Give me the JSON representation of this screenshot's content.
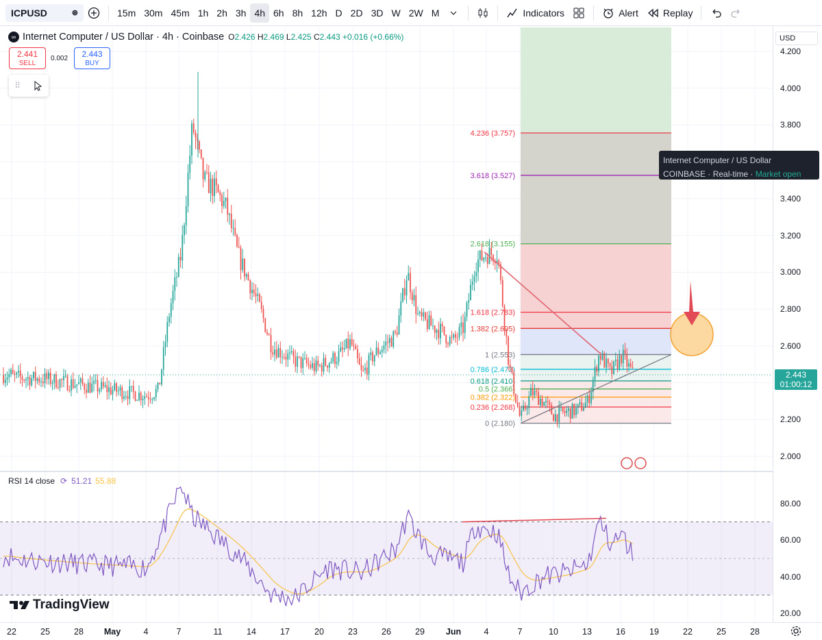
{
  "toolbar": {
    "symbol": "ICPUSD",
    "intervals": [
      "15m",
      "30m",
      "45m",
      "1h",
      "2h",
      "3h",
      "4h",
      "6h",
      "8h",
      "12h",
      "D",
      "2D",
      "3D",
      "W",
      "2W",
      "M"
    ],
    "active_interval": "4h",
    "indicators_label": "Indicators",
    "alert_label": "Alert",
    "replay_label": "Replay"
  },
  "legend": {
    "title": "Internet Computer / US Dollar · 4h · Coinbase",
    "o_key": "O",
    "o": "2.426",
    "h_key": "H",
    "h": "2.469",
    "l_key": "L",
    "l": "2.425",
    "c_key": "C",
    "c": "2.443",
    "change": "+0.016 (+0.66%)"
  },
  "trade": {
    "sell_price": "2.441",
    "sell_label": "SELL",
    "spread": "0.002",
    "buy_price": "2.443",
    "buy_label": "BUY"
  },
  "price_scale": {
    "currency": "USD",
    "labels": [
      "4.200",
      "4.000",
      "3.800",
      "3.600",
      "3.400",
      "3.200",
      "3.000",
      "2.800",
      "2.600",
      "2.400",
      "2.200",
      "2.000"
    ],
    "current_price": "2.443",
    "countdown": "01:00:12"
  },
  "tooltip": {
    "line1": "Internet Computer / US Dollar",
    "exchange": "COINBASE",
    "realtime": "Real-time",
    "market": "Market open"
  },
  "fib_levels": [
    {
      "label": "4.236 (3.757)",
      "value": 3.757,
      "color": "#f23645"
    },
    {
      "label": "3.618 (3.527)",
      "value": 3.527,
      "color": "#9c27b0"
    },
    {
      "label": "2.618 (3.155)",
      "value": 3.155,
      "color": "#4caf50"
    },
    {
      "label": "1.618 (2.783)",
      "value": 2.783,
      "color": "#f23645"
    },
    {
      "label": "1.382 (2.695)",
      "value": 2.695,
      "color": "#e53935"
    },
    {
      "label": "1 (2.553)",
      "value": 2.553,
      "color": "#787b86"
    },
    {
      "label": "0.786 (2.473)",
      "value": 2.473,
      "color": "#00bcd4"
    },
    {
      "label": "0.618 (2.410)",
      "value": 2.41,
      "color": "#089981"
    },
    {
      "label": "0.5 (2.366)",
      "value": 2.366,
      "color": "#4caf50"
    },
    {
      "label": "0.382 (2.322)",
      "value": 2.322,
      "color": "#ff9800"
    },
    {
      "label": "0.236 (2.268)",
      "value": 2.268,
      "color": "#f23645"
    },
    {
      "label": "0 (2.180)",
      "value": 2.18,
      "color": "#787b86"
    }
  ],
  "rsi": {
    "label": "RSI 14 close",
    "value": "51.21",
    "ma_value": "55.88",
    "labels": [
      "80.00",
      "60.00",
      "40.00",
      "20.00"
    ]
  },
  "time_labels": [
    "22",
    "25",
    "28",
    "May",
    "4",
    "7",
    "11",
    "14",
    "17",
    "20",
    "23",
    "26",
    "29",
    "Jun",
    "4",
    "7",
    "10",
    "13",
    "16",
    "19",
    "22",
    "25",
    "28"
  ],
  "brand": "TradingView",
  "colors": {
    "up": "#26a69a",
    "down": "#ef5350",
    "rsi": "#7e57c2",
    "rsi_ma": "#f7c244"
  },
  "chart_data": {
    "type": "candlestick",
    "price_range": [
      2.0,
      4.2
    ],
    "path_points": [
      {
        "x": "Apr 22",
        "price": 2.43
      },
      {
        "x": "Apr 25",
        "price": 2.42
      },
      {
        "x": "Apr 28",
        "price": 2.39
      },
      {
        "x": "May 2",
        "price": 2.35
      },
      {
        "x": "May 4",
        "price": 2.33
      },
      {
        "x": "May 5",
        "price": 2.36
      },
      {
        "x": "May 6",
        "price": 2.8
      },
      {
        "x": "May 7",
        "price": 3.1
      },
      {
        "x": "May 8",
        "price": 3.8
      },
      {
        "x": "May 9",
        "price": 3.5
      },
      {
        "x": "May 10",
        "price": 3.45
      },
      {
        "x": "May 11",
        "price": 3.35
      },
      {
        "x": "May 12",
        "price": 3.1
      },
      {
        "x": "May 13",
        "price": 2.95
      },
      {
        "x": "May 14",
        "price": 2.8
      },
      {
        "x": "May 15",
        "price": 2.6
      },
      {
        "x": "May 17",
        "price": 2.52
      },
      {
        "x": "May 19",
        "price": 2.48
      },
      {
        "x": "May 21",
        "price": 2.55
      },
      {
        "x": "May 22",
        "price": 2.62
      },
      {
        "x": "May 23",
        "price": 2.44
      },
      {
        "x": "May 24",
        "price": 2.55
      },
      {
        "x": "May 26",
        "price": 2.66
      },
      {
        "x": "May 27",
        "price": 3.0
      },
      {
        "x": "May 28",
        "price": 2.75
      },
      {
        "x": "May 30",
        "price": 2.68
      },
      {
        "x": "May 31",
        "price": 2.62
      },
      {
        "x": "Jun 1",
        "price": 2.7
      },
      {
        "x": "Jun 2",
        "price": 3.05
      },
      {
        "x": "Jun 3",
        "price": 3.1
      },
      {
        "x": "Jun 4",
        "price": 3.1
      },
      {
        "x": "Jun 5",
        "price": 2.5
      },
      {
        "x": "Jun 6",
        "price": 2.2
      },
      {
        "x": "Jun 7",
        "price": 2.35
      },
      {
        "x": "Jun 8",
        "price": 2.3
      },
      {
        "x": "Jun 9",
        "price": 2.22
      },
      {
        "x": "Jun 10",
        "price": 2.24
      },
      {
        "x": "Jun 11",
        "price": 2.25
      },
      {
        "x": "Jun 12",
        "price": 2.3
      },
      {
        "x": "Jun 13",
        "price": 2.56
      },
      {
        "x": "Jun 14",
        "price": 2.45
      },
      {
        "x": "Jun 15",
        "price": 2.55
      },
      {
        "x": "Jun 16",
        "price": 2.443
      }
    ],
    "rsi_points": [
      {
        "x": "Apr 22",
        "rsi": 50
      },
      {
        "x": "Apr 28",
        "rsi": 47
      },
      {
        "x": "May 4",
        "rsi": 45
      },
      {
        "x": "May 6",
        "rsi": 75
      },
      {
        "x": "May 7",
        "rsi": 90
      },
      {
        "x": "May 8",
        "rsi": 73
      },
      {
        "x": "May 12",
        "rsi": 52
      },
      {
        "x": "May 15",
        "rsi": 30
      },
      {
        "x": "May 17",
        "rsi": 28
      },
      {
        "x": "May 20",
        "rsi": 45
      },
      {
        "x": "May 23",
        "rsi": 42
      },
      {
        "x": "May 26",
        "rsi": 55
      },
      {
        "x": "May 27",
        "rsi": 73
      },
      {
        "x": "May 29",
        "rsi": 52
      },
      {
        "x": "Jun 1",
        "rsi": 48
      },
      {
        "x": "Jun 2",
        "rsi": 68
      },
      {
        "x": "Jun 4",
        "rsi": 64
      },
      {
        "x": "Jun 5",
        "rsi": 40
      },
      {
        "x": "Jun 6",
        "rsi": 31
      },
      {
        "x": "Jun 8",
        "rsi": 40
      },
      {
        "x": "Jun 10",
        "rsi": 42
      },
      {
        "x": "Jun 12",
        "rsi": 47
      },
      {
        "x": "Jun 13",
        "rsi": 71
      },
      {
        "x": "Jun 14",
        "rsi": 58
      },
      {
        "x": "Jun 15",
        "rsi": 63
      },
      {
        "x": "Jun 16",
        "rsi": 51.21
      }
    ],
    "rsi_bands": [
      30,
      50,
      70
    ],
    "rsi_range": [
      20,
      90
    ]
  }
}
